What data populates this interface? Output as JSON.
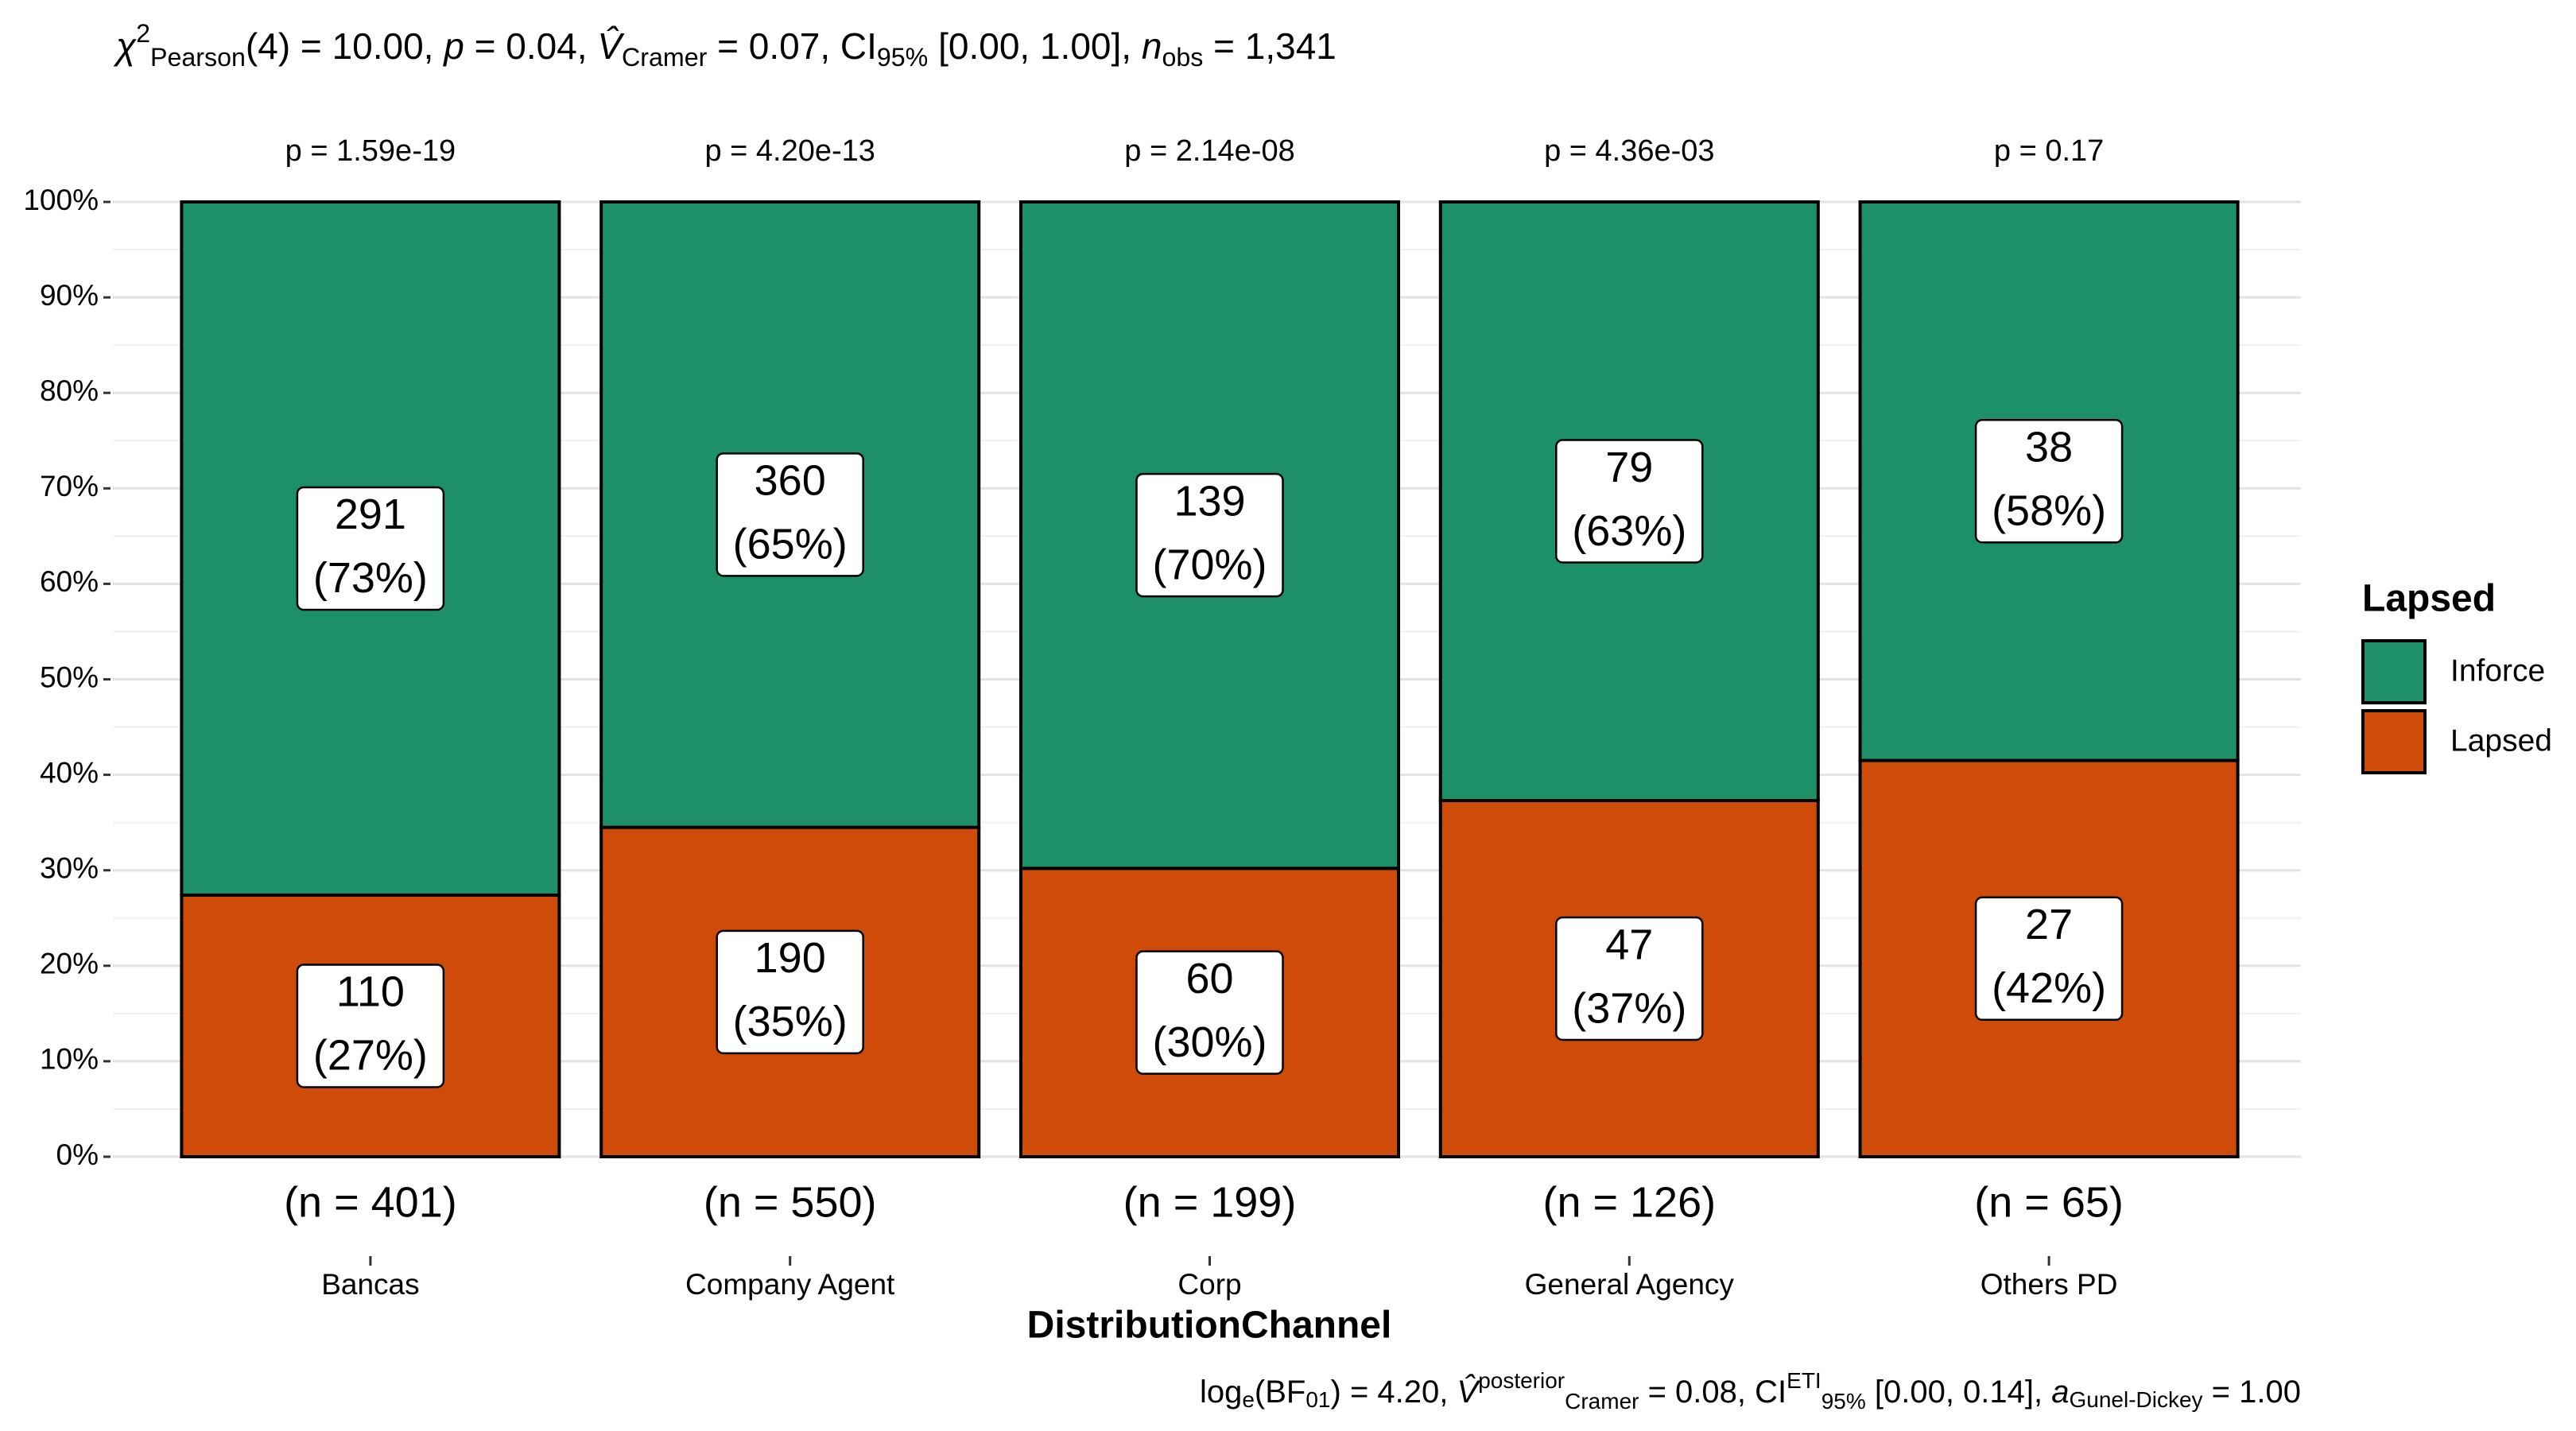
{
  "chart_data": {
    "type": "stacked-bar-percent",
    "subtitle": [
      "χ",
      "2",
      "Pearson",
      "(4) = 10.00, ",
      "p",
      " = 0.04, ",
      "V̂",
      "Cramer",
      " = 0.07, CI",
      "95%",
      " [0.00, 1.00], ",
      "n",
      "obs",
      " = 1,341"
    ],
    "caption": [
      "log",
      "e",
      "(BF",
      "01",
      ") = 4.20, ",
      "V̂",
      "posterior",
      "Cramer",
      " = 0.08, CI",
      "ETI",
      "95%",
      " [0.00, 0.14], ",
      "a",
      "Gunel-Dickey",
      " = 1.00"
    ],
    "x_label": "DistributionChannel",
    "categories": [
      "Bancas",
      "Company Agent",
      "Corp",
      "General Agency",
      "Others PD"
    ],
    "p_labels": [
      "p = 1.59e-19",
      "p = 4.20e-13",
      "p = 2.14e-08",
      "p = 4.36e-03",
      "p = 0.17"
    ],
    "n_labels": [
      "(n = 401)",
      "(n = 550)",
      "(n = 199)",
      "(n = 126)",
      "(n = 65)"
    ],
    "legend_title": "Lapsed",
    "series": [
      {
        "name": "Inforce",
        "color": "#1d9068",
        "values": [
          72.6,
          65.5,
          69.8,
          62.7,
          58.5
        ],
        "counts": [
          "291",
          "360",
          "139",
          "79",
          "38"
        ],
        "value_labels": [
          "(73%)",
          "(65%)",
          "(70%)",
          "(63%)",
          "(58%)"
        ]
      },
      {
        "name": "Lapsed",
        "color": "#ce4b09",
        "values": [
          27.4,
          34.5,
          30.2,
          37.3,
          41.5
        ],
        "counts": [
          "110",
          "190",
          "60",
          "47",
          "27"
        ],
        "value_labels": [
          "(27%)",
          "(35%)",
          "(30%)",
          "(37%)",
          "(42%)"
        ]
      }
    ],
    "ylim": [
      0,
      100
    ],
    "yticks": [
      {
        "value": 0,
        "label": "0%"
      },
      {
        "value": 10,
        "label": "10%"
      },
      {
        "value": 20,
        "label": "20%"
      },
      {
        "value": 30,
        "label": "30%"
      },
      {
        "value": 40,
        "label": "40%"
      },
      {
        "value": 50,
        "label": "50%"
      },
      {
        "value": 60,
        "label": "60%"
      },
      {
        "value": 70,
        "label": "70%"
      },
      {
        "value": 80,
        "label": "80%"
      },
      {
        "value": 90,
        "label": "90%"
      },
      {
        "value": 100,
        "label": "100%"
      }
    ],
    "grid": true
  }
}
